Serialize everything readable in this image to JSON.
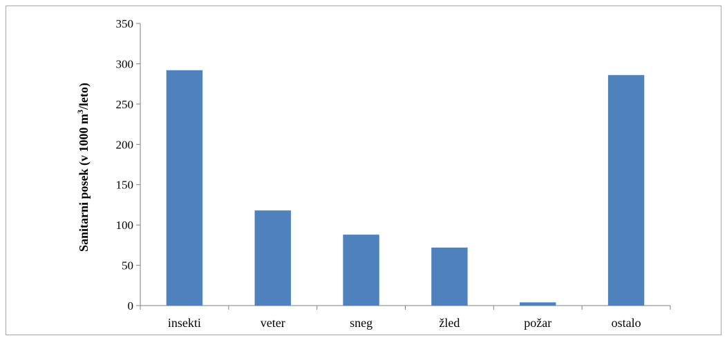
{
  "chart_data": {
    "type": "bar",
    "categories": [
      "insekti",
      "veter",
      "sneg",
      "žled",
      "požar",
      "ostalo"
    ],
    "values": [
      292,
      118,
      88,
      72,
      4,
      286
    ],
    "title": "",
    "xlabel": "",
    "ylabel": "Sanitarni posek (v 1000 m3/leto)",
    "ylabel_parts": {
      "before": "Sanitarni posek (v 1000 m",
      "sup": "3",
      "after": "/leto)"
    },
    "ylim": [
      0,
      350
    ],
    "yticks": [
      0,
      50,
      100,
      150,
      200,
      250,
      300,
      350
    ],
    "grid": false,
    "legend": "none",
    "bar_color": "#4f81bd",
    "axis_color": "#7f7f7f"
  }
}
